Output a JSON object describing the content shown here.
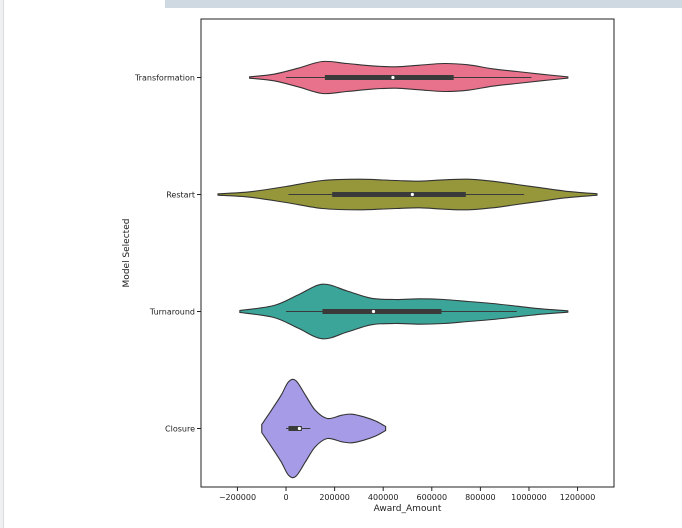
{
  "chart_data": {
    "type": "violin",
    "title": "",
    "xlabel": "Award_Amount",
    "ylabel": "Model Selected",
    "xlim": [
      -350000,
      1350000
    ],
    "xticks": [
      -200000,
      0,
      200000,
      400000,
      600000,
      800000,
      1000000,
      1200000
    ],
    "xtick_labels": [
      "−200000",
      "0",
      "200000",
      "400000",
      "600000",
      "800000",
      "1000000",
      "1200000"
    ],
    "grid": false,
    "legend": "none",
    "categories": [
      "Transformation",
      "Restart",
      "Turnaround",
      "Closure"
    ],
    "series": [
      {
        "name": "Transformation",
        "color": "#e8718b",
        "min": -150000,
        "max": 1160000,
        "q1": 160000,
        "median": 440000,
        "q3": 690000,
        "whisker_low": 0,
        "whisker_high": 1010000,
        "density": [
          [
            -150000,
            0.02
          ],
          [
            -50000,
            0.1
          ],
          [
            50000,
            0.28
          ],
          [
            150000,
            0.48
          ],
          [
            250000,
            0.42
          ],
          [
            350000,
            0.35
          ],
          [
            450000,
            0.32
          ],
          [
            550000,
            0.37
          ],
          [
            650000,
            0.42
          ],
          [
            750000,
            0.38
          ],
          [
            850000,
            0.26
          ],
          [
            950000,
            0.18
          ],
          [
            1050000,
            0.1
          ],
          [
            1160000,
            0.02
          ]
        ]
      },
      {
        "name": "Restart",
        "color": "#96963a",
        "min": -280000,
        "max": 1280000,
        "q1": 190000,
        "median": 520000,
        "q3": 740000,
        "whisker_low": 10000,
        "whisker_high": 980000,
        "density": [
          [
            -280000,
            0.02
          ],
          [
            -150000,
            0.08
          ],
          [
            0,
            0.24
          ],
          [
            150000,
            0.42
          ],
          [
            300000,
            0.46
          ],
          [
            450000,
            0.42
          ],
          [
            550000,
            0.4
          ],
          [
            650000,
            0.44
          ],
          [
            750000,
            0.46
          ],
          [
            850000,
            0.4
          ],
          [
            950000,
            0.3
          ],
          [
            1050000,
            0.2
          ],
          [
            1150000,
            0.1
          ],
          [
            1280000,
            0.02
          ]
        ]
      },
      {
        "name": "Turnaround",
        "color": "#3ba59a",
        "min": -190000,
        "max": 1160000,
        "q1": 150000,
        "median": 360000,
        "q3": 640000,
        "whisker_low": 0,
        "whisker_high": 950000,
        "density": [
          [
            -190000,
            0.03
          ],
          [
            -50000,
            0.18
          ],
          [
            50000,
            0.5
          ],
          [
            150000,
            0.82
          ],
          [
            250000,
            0.62
          ],
          [
            350000,
            0.4
          ],
          [
            450000,
            0.36
          ],
          [
            550000,
            0.38
          ],
          [
            650000,
            0.36
          ],
          [
            750000,
            0.3
          ],
          [
            850000,
            0.24
          ],
          [
            950000,
            0.16
          ],
          [
            1050000,
            0.08
          ],
          [
            1160000,
            0.02
          ]
        ]
      },
      {
        "name": "Closure",
        "color": "#a59be6",
        "min": -100000,
        "max": 410000,
        "q1": 10000,
        "median": 55000,
        "q3": 65000,
        "whisker_low": 0,
        "whisker_high": 100000,
        "density": [
          [
            -100000,
            0.12
          ],
          [
            -60000,
            0.55
          ],
          [
            -20000,
            1.0
          ],
          [
            10000,
            1.4
          ],
          [
            40000,
            1.44
          ],
          [
            80000,
            1.0
          ],
          [
            120000,
            0.55
          ],
          [
            170000,
            0.3
          ],
          [
            230000,
            0.4
          ],
          [
            270000,
            0.43
          ],
          [
            320000,
            0.35
          ],
          [
            370000,
            0.22
          ],
          [
            410000,
            0.06
          ]
        ]
      }
    ]
  }
}
